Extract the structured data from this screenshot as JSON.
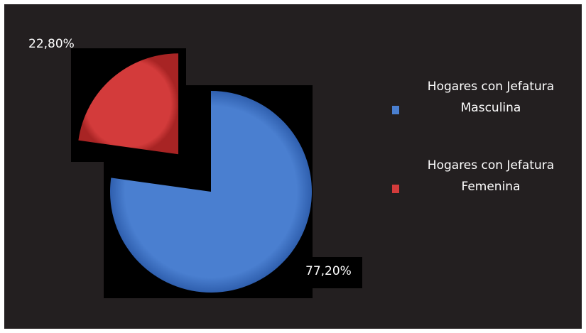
{
  "chart_data": {
    "type": "pie",
    "categories": [
      "Hogares con Jefatura Masculina",
      "Hogares con Jefatura Femenina"
    ],
    "values": [
      77.2,
      22.8
    ],
    "value_labels": [
      "77,20%",
      "22,80%"
    ],
    "colors": [
      "#4a7fd0",
      "#d33b3b"
    ],
    "legend": "right"
  }
}
